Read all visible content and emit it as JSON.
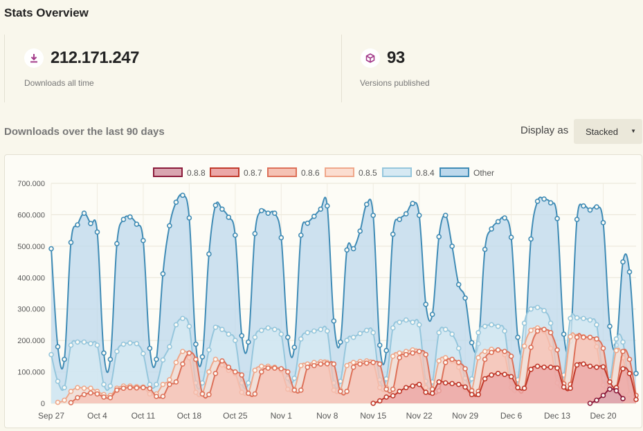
{
  "header": {
    "title": "Stats Overview"
  },
  "stats": {
    "downloads": {
      "icon": "download-icon",
      "value": "212.171.247",
      "label": "Downloads all time",
      "color": "#a33a8a"
    },
    "versions": {
      "icon": "cube-icon",
      "value": "93",
      "label": "Versions published",
      "color": "#a33a8a"
    }
  },
  "section": {
    "title": "Downloads over the last 90 days",
    "display_label": "Display as",
    "display_value": "Stacked"
  },
  "chart_data": {
    "type": "area",
    "stacked": true,
    "title": "",
    "xlabel": "",
    "ylabel": "",
    "ylim": [
      0,
      700000
    ],
    "yticks": [
      0,
      100000,
      200000,
      300000,
      400000,
      500000,
      600000,
      700000
    ],
    "ytick_labels": [
      "0",
      "100.000",
      "200.000",
      "300.000",
      "400.000",
      "500.000",
      "600.000",
      "700.000"
    ],
    "xtick_labels": [
      "Sep 27",
      "Oct 4",
      "Oct 11",
      "Oct 18",
      "Oct 25",
      "Nov 1",
      "Nov 8",
      "Nov 15",
      "Nov 22",
      "Nov 29",
      "Dec 6",
      "Dec 13",
      "Dec 20"
    ],
    "xtick_index": [
      0,
      7,
      14,
      21,
      28,
      35,
      42,
      49,
      56,
      63,
      70,
      77,
      84
    ],
    "legend": [
      "0.8.8",
      "0.8.7",
      "0.8.6",
      "0.8.5",
      "0.8.4",
      "Other"
    ],
    "series": [
      {
        "name": "0.8.8",
        "stroke": "#8b1a3a",
        "fill": "#d9a5b0",
        "start": 82,
        "totals": [
          0,
          10000,
          25000,
          45000,
          40000,
          15000
        ]
      },
      {
        "name": "0.8.7",
        "stroke": "#c0392b",
        "fill": "#eba7a7",
        "start": 49,
        "totals": [
          0,
          8000,
          20000,
          24000,
          38000,
          50000,
          55000,
          60000,
          35000,
          32000,
          68000,
          65000,
          63000,
          60000,
          52000,
          28000,
          28000,
          78000,
          90000,
          95000,
          92000,
          85000,
          50000,
          48000,
          108000,
          118000,
          115000,
          115000,
          112000,
          52000,
          48000,
          122000,
          125000,
          118000,
          115000,
          116000,
          68000,
          50000,
          110000,
          95000,
          12000
        ]
      },
      {
        "name": "0.8.6",
        "stroke": "#dd7058",
        "fill": "#f5c2b4",
        "start": 3,
        "totals": [
          2000,
          18000,
          28000,
          33000,
          30000,
          20000,
          18000,
          42000,
          48000,
          50000,
          49000,
          50000,
          47000,
          22000,
          22000,
          60000,
          68000,
          125000,
          160000,
          140000,
          30000,
          28000,
          95000,
          135000,
          115000,
          100000,
          90000,
          32000,
          30000,
          100000,
          112000,
          112000,
          110000,
          100000,
          42000,
          42000,
          115000,
          120000,
          125000,
          126000,
          125000,
          38000,
          38000,
          115000,
          125000,
          128000,
          130000,
          125000,
          45000,
          45000,
          145000,
          155000,
          160000,
          165000,
          155000,
          45000,
          40000,
          130000,
          140000,
          130000,
          110000,
          40000,
          38000,
          140000,
          162000,
          170000,
          165000,
          150000,
          48000,
          48000,
          178000,
          230000,
          235000,
          225000,
          170000,
          62000,
          60000,
          210000,
          210000,
          210000,
          205000,
          175000,
          55000,
          50000,
          165000,
          140000,
          25000
        ]
      },
      {
        "name": "0.8.5",
        "stroke": "#efa78a",
        "fill": "#fbddd0",
        "start": 1,
        "totals": [
          3000,
          10000,
          38000,
          50000,
          48000,
          48000,
          38000,
          28000,
          25000,
          48000,
          55000,
          55000,
          53000,
          52000,
          30000,
          30000,
          60000,
          75000,
          130000,
          165000,
          145000,
          35000,
          32000,
          100000,
          140000,
          122000,
          105000,
          95000,
          35000,
          33000,
          105000,
          118000,
          118000,
          115000,
          105000,
          45000,
          45000,
          120000,
          125000,
          130000,
          132000,
          130000,
          42000,
          42000,
          120000,
          130000,
          133000,
          135000,
          130000,
          50000,
          50000,
          150000,
          160000,
          165000,
          170000,
          160000,
          50000,
          45000,
          135000,
          145000,
          135000,
          115000,
          45000,
          42000,
          145000,
          165000,
          172000,
          168000,
          155000,
          50000,
          50000,
          182000,
          232000,
          240000,
          230000,
          175000,
          65000,
          62000,
          212000,
          213000,
          212000,
          208000,
          180000,
          58000,
          52000,
          168000,
          145000,
          28000
        ]
      },
      {
        "name": "0.8.4",
        "stroke": "#95c6dc",
        "fill": "#d6e9f3",
        "start": 0,
        "totals": [
          155000,
          70000,
          50000,
          185000,
          195000,
          195000,
          190000,
          185000,
          60000,
          55000,
          165000,
          188000,
          192000,
          190000,
          158000,
          60000,
          60000,
          138000,
          180000,
          250000,
          270000,
          245000,
          65000,
          65000,
          170000,
          242000,
          235000,
          220000,
          200000,
          65000,
          65000,
          210000,
          232000,
          240000,
          235000,
          220000,
          80000,
          80000,
          205000,
          225000,
          230000,
          235000,
          230000,
          65000,
          70000,
          200000,
          210000,
          222000,
          232000,
          225000,
          75000,
          78000,
          240000,
          258000,
          265000,
          258000,
          250000,
          70000,
          68000,
          225000,
          235000,
          220000,
          175000,
          80000,
          78000,
          225000,
          245000,
          250000,
          245000,
          230000,
          75000,
          75000,
          255000,
          300000,
          305000,
          295000,
          255000,
          95000,
          90000,
          270000,
          272000,
          270000,
          265000,
          250000,
          80000,
          75000,
          205000,
          195000,
          30000
        ]
      },
      {
        "name": "Other",
        "stroke": "#3f8bb5",
        "fill": "#bcd8ec",
        "start": 0,
        "totals": [
          492000,
          180000,
          140000,
          512000,
          568000,
          605000,
          572000,
          545000,
          160000,
          140000,
          508000,
          585000,
          593000,
          570000,
          518000,
          175000,
          140000,
          412000,
          565000,
          640000,
          662000,
          590000,
          188000,
          148000,
          475000,
          630000,
          618000,
          592000,
          535000,
          215000,
          195000,
          540000,
          613000,
          605000,
          605000,
          527000,
          210000,
          178000,
          535000,
          573000,
          595000,
          618000,
          628000,
          262000,
          195000,
          488000,
          492000,
          548000,
          633000,
          598000,
          185000,
          168000,
          538000,
          585000,
          603000,
          636000,
          598000,
          315000,
          283000,
          530000,
          598000,
          500000,
          378000,
          335000,
          193000,
          190000,
          490000,
          555000,
          578000,
          590000,
          528000,
          210000,
          178000,
          523000,
          643000,
          650000,
          638000,
          588000,
          220000,
          198000,
          585000,
          628000,
          615000,
          625000,
          575000,
          245000,
          185000,
          450000,
          418000,
          95000
        ]
      }
    ]
  }
}
